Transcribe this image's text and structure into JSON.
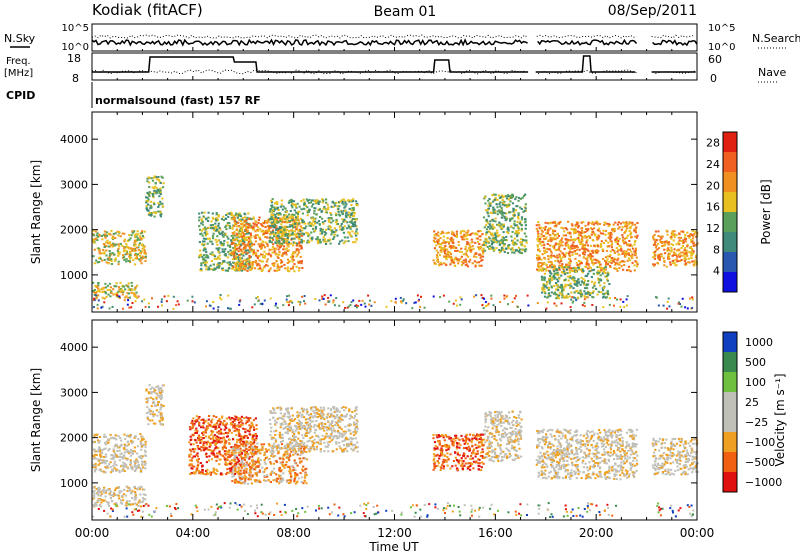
{
  "header": {
    "site": "Kodiak (fitACF)",
    "beam": "Beam 01",
    "date": "08/Sep/2011"
  },
  "top_panels": {
    "nsky_label": "N.Sky",
    "nsearch_label": "N.Search",
    "log_ticks": [
      "10^5",
      "10^0"
    ],
    "freq_label_1": "Freq.",
    "freq_label_2": "[MHz]",
    "freq_ticks": [
      "18",
      "8"
    ],
    "nave_label": "Nave",
    "nave_ticks": [
      "60",
      "0"
    ],
    "cpid_label": "CPID",
    "cpid_text": "normalsound (fast) 157 RF"
  },
  "colors": {
    "power": [
      "#1010e0",
      "#2a57b0",
      "#3f8a78",
      "#5aa05a",
      "#e8c020",
      "#f09020",
      "#f06020",
      "#e02010"
    ],
    "velocity": [
      "#e01010",
      "#f06010",
      "#f0a020",
      "#c0c0b8",
      "#c0c0b8",
      "#70c040",
      "#3a8a50",
      "#1040c0"
    ]
  },
  "chart_data": [
    {
      "type": "heatmap",
      "panel": "power",
      "ylabel": "Slant Range [km]",
      "y_ticks": [
        1000,
        2000,
        3000,
        4000
      ],
      "ylim": [
        180,
        4600
      ],
      "xlim_hours": [
        0,
        24
      ],
      "colorbar": {
        "label": "Power [dB]",
        "ticks": [
          "4",
          "8",
          "12",
          "16",
          "20",
          "24",
          "28"
        ],
        "range": [
          0,
          30
        ]
      },
      "scatter_regions": [
        {
          "t": [
            0.0,
            2.1
          ],
          "r": [
            1250,
            2000
          ],
          "center_km": 1650,
          "level": 4
        },
        {
          "t": [
            0.0,
            1.8
          ],
          "r": [
            500,
            850
          ],
          "center_km": 650,
          "level": 4
        },
        {
          "t": [
            2.1,
            2.8
          ],
          "r": [
            2300,
            3200
          ],
          "center_km": 2700,
          "level": 3
        },
        {
          "t": [
            4.2,
            6.3
          ],
          "r": [
            1100,
            2400
          ],
          "center_km": 1700,
          "level": 3
        },
        {
          "t": [
            5.5,
            8.3
          ],
          "r": [
            1100,
            2300
          ],
          "center_km": 1700,
          "level": 5
        },
        {
          "t": [
            7.0,
            10.5
          ],
          "r": [
            1700,
            2700
          ],
          "center_km": 2200,
          "level": 3
        },
        {
          "t": [
            13.5,
            15.5
          ],
          "r": [
            1200,
            2000
          ],
          "center_km": 1550,
          "level": 5
        },
        {
          "t": [
            15.5,
            17.2
          ],
          "r": [
            1500,
            2800
          ],
          "center_km": 2100,
          "level": 3
        },
        {
          "t": [
            17.6,
            21.6
          ],
          "r": [
            1100,
            2200
          ],
          "center_km": 1600,
          "level": 5
        },
        {
          "t": [
            17.8,
            20.5
          ],
          "r": [
            500,
            1200
          ],
          "center_km": 800,
          "level": 3
        },
        {
          "t": [
            22.2,
            24.0
          ],
          "r": [
            1200,
            2000
          ],
          "center_km": 1600,
          "level": 5
        }
      ]
    },
    {
      "type": "heatmap",
      "panel": "velocity",
      "ylabel": "Slant Range [km]",
      "xlabel": "Time UT",
      "x_ticks": [
        "00:00",
        "04:00",
        "08:00",
        "12:00",
        "16:00",
        "20:00",
        "00:00"
      ],
      "y_ticks": [
        1000,
        2000,
        3000,
        4000
      ],
      "ylim": [
        180,
        4600
      ],
      "xlim_hours": [
        0,
        24
      ],
      "colorbar": {
        "label": "Velocity [m s⁻¹]",
        "ticks": [
          "1000",
          "500",
          "100",
          "25",
          "−25",
          "−100",
          "−500",
          "−1000"
        ]
      },
      "scatter_regions": [
        {
          "t": [
            0.0,
            2.1
          ],
          "r": [
            1250,
            2100
          ],
          "center_km": 1650,
          "level": 3
        },
        {
          "t": [
            0.0,
            2.1
          ],
          "r": [
            500,
            950
          ],
          "center_km": 700,
          "level": 3
        },
        {
          "t": [
            2.1,
            2.8
          ],
          "r": [
            2300,
            3200
          ],
          "center_km": 2700,
          "level": 3
        },
        {
          "t": [
            3.8,
            6.5
          ],
          "r": [
            1200,
            2500
          ],
          "center_km": 1800,
          "level": 1
        },
        {
          "t": [
            5.5,
            8.5
          ],
          "r": [
            1000,
            1900
          ],
          "center_km": 1400,
          "level": 2
        },
        {
          "t": [
            7.0,
            10.5
          ],
          "r": [
            1700,
            2700
          ],
          "center_km": 2200,
          "level": 3
        },
        {
          "t": [
            13.5,
            15.5
          ],
          "r": [
            1300,
            2100
          ],
          "center_km": 1650,
          "level": 1
        },
        {
          "t": [
            15.5,
            17.0
          ],
          "r": [
            1500,
            2600
          ],
          "center_km": 2000,
          "level": 3
        },
        {
          "t": [
            17.6,
            21.6
          ],
          "r": [
            1100,
            2200
          ],
          "center_km": 1600,
          "level": 3
        },
        {
          "t": [
            22.2,
            24.0
          ],
          "r": [
            1200,
            2000
          ],
          "center_km": 1600,
          "level": 3
        }
      ]
    }
  ]
}
